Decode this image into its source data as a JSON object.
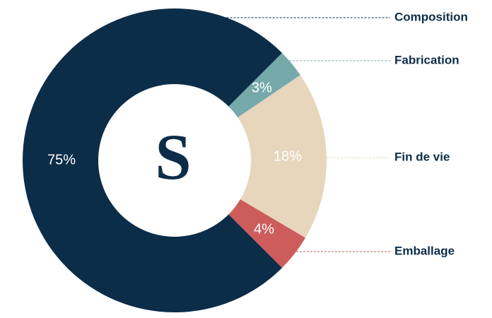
{
  "chart_data": {
    "type": "donut",
    "center_text": "S",
    "categories": [
      "Composition",
      "Fabrication",
      "Fin de vie",
      "Emballage"
    ],
    "values": [
      75,
      3,
      18,
      4
    ],
    "value_labels": [
      "75%",
      "3%",
      "18%",
      "4%"
    ],
    "colors": [
      "#0c2d48",
      "#76a9a9",
      "#e8d6bc",
      "#cc5d5b"
    ]
  }
}
